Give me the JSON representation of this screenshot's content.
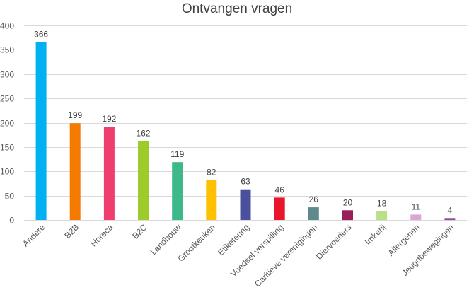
{
  "chart_data": {
    "type": "bar",
    "title": "Ontvangen vragen",
    "xlabel": "",
    "ylabel": "",
    "ylim": [
      0,
      400
    ],
    "y_ticks": [
      0,
      50,
      100,
      150,
      200,
      250,
      300,
      350,
      400
    ],
    "grid": true,
    "legend": "none",
    "categories": [
      "Andere",
      "B2B",
      "Horeca",
      "B2C",
      "Landbouw",
      "Grootkeuken",
      "Etiketering",
      "Voedsel verspilling",
      "Caritieve verenigingen",
      "Diervoeders",
      "Imkerij",
      "Allergenen",
      "Jeugdbewegingen"
    ],
    "values": [
      366,
      199,
      192,
      162,
      119,
      82,
      63,
      46,
      26,
      20,
      18,
      11,
      4
    ],
    "colors": [
      "#00b0f0",
      "#f47b00",
      "#ef3e6e",
      "#9dcc2a",
      "#3cb88a",
      "#ffc000",
      "#4a4f9e",
      "#e8162c",
      "#5f8a8b",
      "#962057",
      "#b9e087",
      "#d9a6d6",
      "#92469c"
    ]
  }
}
